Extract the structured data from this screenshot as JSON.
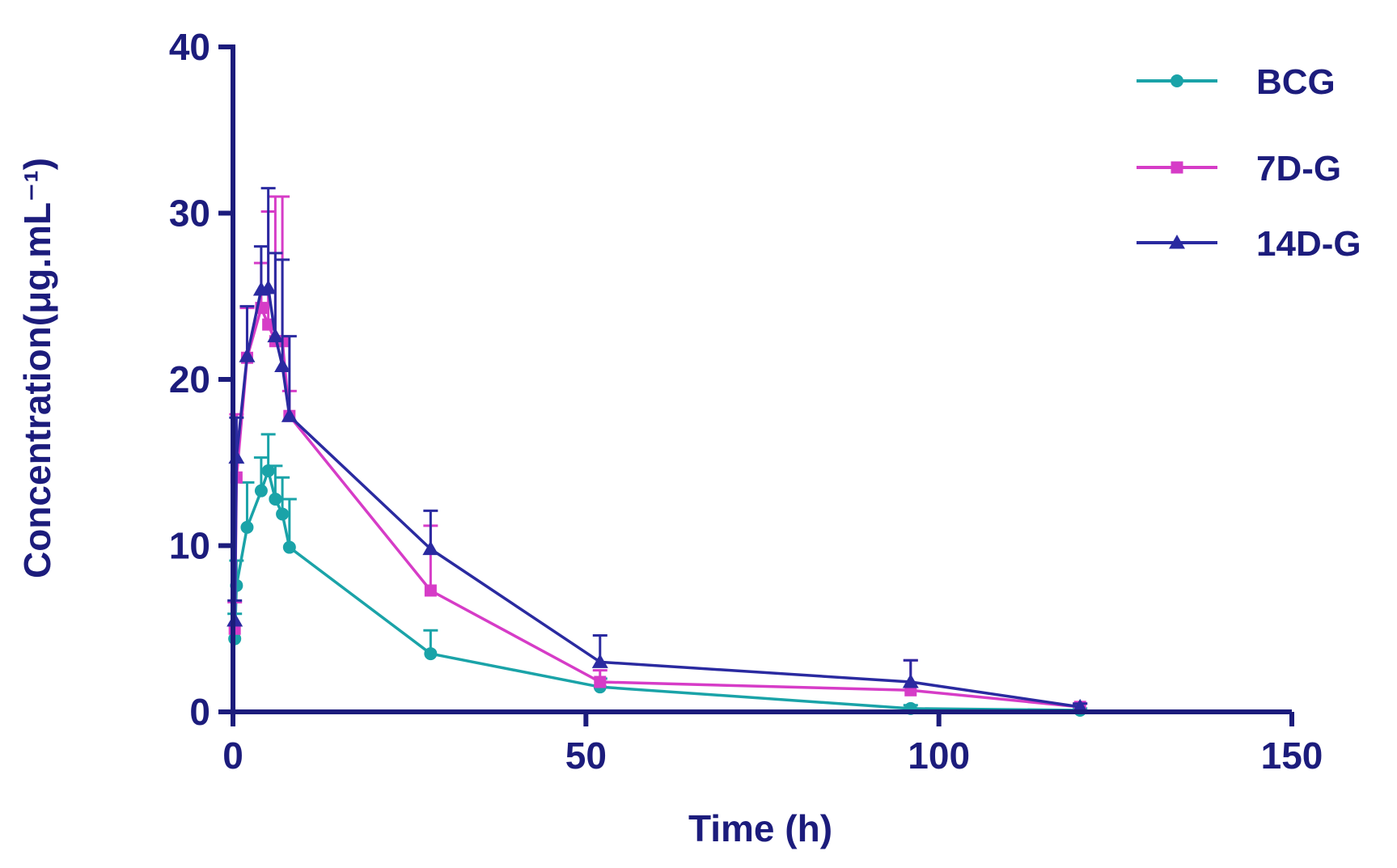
{
  "chart_data": {
    "type": "line",
    "title": "",
    "xlabel": "Time (h)",
    "ylabel": "Concentration(μg.mL⁻¹)",
    "xlim": [
      0,
      150
    ],
    "ylim": [
      0,
      40
    ],
    "x_ticks": [
      "0",
      "50",
      "100",
      "150"
    ],
    "y_ticks": [
      "0",
      "10",
      "20",
      "30",
      "40"
    ],
    "grid": false,
    "legend_position": "top-right",
    "colors": {
      "axis": "#1c1c7c",
      "text": "#1c1c7c",
      "BCG": "#1aa3a8",
      "7D-G": "#d63cc7",
      "14D-G": "#2a2aa0"
    },
    "series": [
      {
        "name": "BCG",
        "marker": "circle",
        "x": [
          0.25,
          0.5,
          2,
          4,
          5,
          6,
          7,
          8,
          28,
          52,
          96,
          120
        ],
        "y": [
          4.4,
          7.6,
          11.1,
          13.3,
          14.5,
          12.8,
          11.9,
          9.9,
          3.5,
          1.5,
          0.2,
          0.1
        ],
        "err": [
          1.5,
          1.5,
          2.7,
          2.0,
          2.2,
          2.0,
          2.2,
          2.9,
          1.4,
          0.5,
          0.2,
          0.1
        ]
      },
      {
        "name": "7D-G",
        "marker": "square",
        "x": [
          0.25,
          0.5,
          2,
          4,
          5,
          6,
          7,
          8,
          28,
          52,
          96,
          120
        ],
        "y": [
          5.0,
          14.1,
          21.3,
          24.3,
          23.3,
          22.3,
          22.3,
          17.8,
          7.3,
          1.8,
          1.3,
          0.3
        ],
        "err": [
          1.6,
          3.8,
          3.0,
          2.7,
          6.8,
          8.7,
          8.7,
          1.5,
          3.9,
          0.7,
          1.8,
          0.2
        ]
      },
      {
        "name": "14D-G",
        "marker": "triangle",
        "x": [
          0.25,
          0.5,
          2,
          4,
          5,
          6,
          7,
          8,
          28,
          52,
          96,
          120
        ],
        "y": [
          5.5,
          15.3,
          21.4,
          25.4,
          25.5,
          22.6,
          20.8,
          17.8,
          9.8,
          3.0,
          1.8,
          0.3
        ],
        "err": [
          1.2,
          2.4,
          3.0,
          2.6,
          6.0,
          5.0,
          6.4,
          4.8,
          2.3,
          1.6,
          1.3,
          0.2
        ]
      }
    ]
  }
}
